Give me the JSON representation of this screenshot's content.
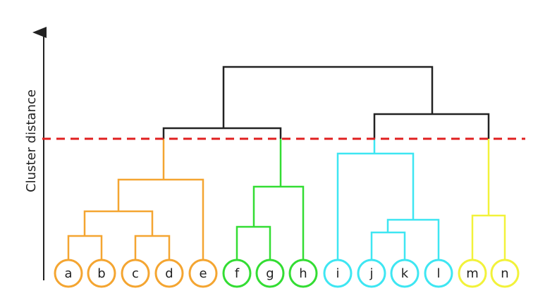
{
  "axis_label": "Cluster distance",
  "leaves": [
    {
      "label": "a",
      "color": "#f4a531"
    },
    {
      "label": "b",
      "color": "#f4a531"
    },
    {
      "label": "c",
      "color": "#f4a531"
    },
    {
      "label": "d",
      "color": "#f4a531"
    },
    {
      "label": "e",
      "color": "#f4a531"
    },
    {
      "label": "f",
      "color": "#33dd33"
    },
    {
      "label": "g",
      "color": "#33dd33"
    },
    {
      "label": "h",
      "color": "#33dd33"
    },
    {
      "label": "i",
      "color": "#3ee6f2"
    },
    {
      "label": "j",
      "color": "#3ee6f2"
    },
    {
      "label": "k",
      "color": "#3ee6f2"
    },
    {
      "label": "l",
      "color": "#3ee6f2"
    },
    {
      "label": "m",
      "color": "#f2f23a"
    },
    {
      "label": "n",
      "color": "#f2f23a"
    }
  ]
}
